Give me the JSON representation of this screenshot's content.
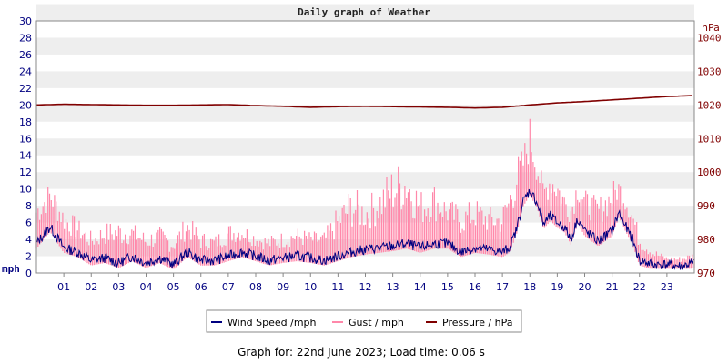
{
  "chart_data": {
    "type": "line",
    "title": "Daily graph of Weather",
    "footer": "Graph for: 22nd June 2023; Load time: 0.06 s",
    "x_ticks": [
      "01",
      "02",
      "03",
      "04",
      "05",
      "06",
      "07",
      "08",
      "09",
      "10",
      "11",
      "12",
      "13",
      "14",
      "15",
      "16",
      "17",
      "18",
      "19",
      "20",
      "21",
      "22",
      "23"
    ],
    "x_range": [
      0,
      24
    ],
    "y_left": {
      "unit": "mph",
      "range": [
        0,
        30
      ],
      "ticks": [
        "0",
        "2",
        "4",
        "6",
        "8",
        "10",
        "12",
        "14",
        "16",
        "18",
        "20",
        "22",
        "24",
        "26",
        "28",
        "30"
      ]
    },
    "y_right": {
      "unit": "hPa",
      "range": [
        970,
        1045
      ],
      "ticks": [
        "970",
        "980",
        "990",
        "1000",
        "1010",
        "1020",
        "1030",
        "1040"
      ]
    },
    "grid": "horizontal-bands",
    "legend_position": "bottom-center",
    "series": [
      {
        "name": "Wind Speed /mph",
        "axis": "left",
        "color": "#000080",
        "x": [
          0,
          0.5,
          1,
          1.5,
          2,
          2.5,
          3,
          3.5,
          4,
          4.5,
          5,
          5.5,
          6,
          6.5,
          7,
          7.5,
          8,
          8.5,
          9,
          9.5,
          10,
          10.5,
          11,
          11.5,
          12,
          12.5,
          13,
          13.5,
          14,
          14.5,
          15,
          15.5,
          16,
          16.5,
          17,
          17.25,
          17.5,
          17.75,
          18,
          18.25,
          18.5,
          18.75,
          19,
          19.25,
          19.5,
          19.75,
          20,
          20.5,
          21,
          21.25,
          21.5,
          21.75,
          22,
          22.5,
          23,
          23.5,
          24
        ],
        "values": [
          3.5,
          5.5,
          3,
          2.5,
          1.5,
          1.8,
          1.2,
          2,
          1.2,
          1.8,
          1,
          2.5,
          1.5,
          1.5,
          2,
          2.5,
          2,
          1.5,
          1.8,
          2,
          1.8,
          1.5,
          2,
          2.5,
          2.8,
          3,
          3.2,
          3.5,
          3,
          3.5,
          3.5,
          2.5,
          3,
          2.8,
          2.5,
          3,
          5,
          8.5,
          9.8,
          8.5,
          5.8,
          6.8,
          6,
          5.5,
          4,
          6.5,
          5,
          3.8,
          5,
          7.2,
          5.5,
          4,
          1.5,
          1,
          1,
          0.8,
          1.2
        ]
      },
      {
        "name": "Gust / mph",
        "axis": "left",
        "color": "#ff88aa",
        "x": [
          0,
          0.5,
          1,
          1.5,
          2,
          2.5,
          3,
          3.5,
          4,
          4.5,
          5,
          5.5,
          6,
          6.5,
          7,
          7.5,
          8,
          8.5,
          9,
          9.5,
          10,
          10.5,
          11,
          11.5,
          12,
          12.5,
          13,
          13.5,
          14,
          14.5,
          15,
          15.5,
          16,
          16.5,
          17,
          17.25,
          17.5,
          17.75,
          18,
          18.25,
          18.5,
          18.75,
          19,
          19.25,
          19.5,
          19.75,
          20,
          20.5,
          21,
          21.25,
          21.5,
          21.75,
          22,
          22.5,
          23,
          23.5,
          24
        ],
        "values": [
          9,
          11,
          8,
          6.5,
          5,
          6,
          6.5,
          6,
          5,
          5.5,
          4.5,
          7,
          5,
          4.5,
          6,
          6,
          5,
          4.5,
          5,
          5.5,
          5,
          5,
          8,
          10.5,
          9,
          10.5,
          13,
          14,
          10,
          11,
          9,
          8,
          9,
          8,
          8,
          11,
          14,
          15,
          19,
          15,
          11,
          13,
          12,
          10,
          9,
          12,
          10,
          9,
          11,
          11.5,
          10,
          8,
          5,
          3,
          2,
          2,
          2.5
        ]
      },
      {
        "name": "Pressure / hPa",
        "axis": "right",
        "color": "#800000",
        "x": [
          0,
          1,
          2,
          3,
          4,
          5,
          6,
          7,
          8,
          9,
          10,
          11,
          12,
          13,
          14,
          15,
          16,
          17,
          18,
          19,
          20,
          21,
          22,
          23,
          24
        ],
        "values": [
          1020,
          1020.2,
          1020.1,
          1020,
          1019.9,
          1019.9,
          1020,
          1020.1,
          1019.8,
          1019.6,
          1019.3,
          1019.5,
          1019.6,
          1019.5,
          1019.4,
          1019.3,
          1019.1,
          1019.3,
          1020,
          1020.6,
          1021,
          1021.5,
          1022,
          1022.5,
          1022.8
        ]
      }
    ]
  }
}
